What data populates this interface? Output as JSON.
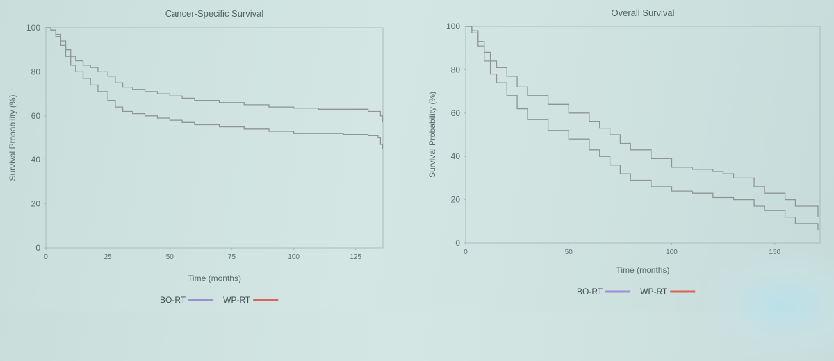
{
  "chart_data": [
    {
      "type": "line",
      "title": "Cancer-Specific Survival",
      "xlabel": "Time (months)",
      "ylabel": "Survival Probability (%)",
      "xlim": [
        0,
        136
      ],
      "ylim": [
        0,
        100
      ],
      "xticks": [
        0,
        25,
        50,
        75,
        100,
        125
      ],
      "yticks": [
        0,
        20,
        40,
        60,
        80,
        100
      ],
      "grid": false,
      "legend_position": "bottom",
      "legend": [
        {
          "label": "BO-RT",
          "color": "#9b8fd6"
        },
        {
          "label": "WP-RT",
          "color": "#d9645a"
        }
      ],
      "series": [
        {
          "name": "WP-RT",
          "color": "#8f9597",
          "x": [
            0,
            2,
            4,
            6,
            8,
            10,
            12,
            15,
            18,
            21,
            25,
            28,
            31,
            35,
            40,
            45,
            50,
            55,
            60,
            70,
            80,
            90,
            100,
            110,
            120,
            130,
            134,
            135,
            135.8
          ],
          "y": [
            100,
            99,
            97,
            94,
            90,
            87,
            85,
            83,
            82,
            80,
            78,
            75,
            73,
            72,
            71,
            70,
            69,
            68,
            67,
            66,
            65,
            64,
            63.5,
            63,
            63,
            62,
            62,
            60,
            57
          ]
        },
        {
          "name": "BO-RT",
          "color": "#8f9597",
          "x": [
            0,
            2,
            4,
            6,
            8,
            10,
            12,
            15,
            18,
            21,
            25,
            28,
            31,
            35,
            40,
            45,
            50,
            55,
            60,
            70,
            80,
            90,
            100,
            110,
            120,
            130,
            134,
            135,
            135.8
          ],
          "y": [
            100,
            99,
            96,
            92,
            87,
            83,
            80,
            77,
            74,
            71,
            67,
            64,
            62,
            61,
            60,
            59,
            58,
            57,
            56,
            55,
            54,
            53,
            52,
            52,
            51.5,
            51,
            50,
            47,
            45
          ]
        }
      ]
    },
    {
      "type": "line",
      "title": "Overall Survival",
      "xlabel": "Time (months)",
      "ylabel": "Survival Probability (%)",
      "xlim": [
        0,
        172
      ],
      "ylim": [
        0,
        100
      ],
      "xticks": [
        0,
        50,
        100,
        150
      ],
      "yticks": [
        0,
        20,
        40,
        60,
        80,
        100
      ],
      "grid": false,
      "legend_position": "bottom",
      "legend": [
        {
          "label": "BO-RT",
          "color": "#9b8fd6"
        },
        {
          "label": "WP-RT",
          "color": "#d9645a"
        }
      ],
      "series": [
        {
          "name": "WP-RT",
          "color": "#8f9597",
          "x": [
            0,
            3,
            6,
            9,
            12,
            15,
            20,
            25,
            30,
            40,
            50,
            60,
            65,
            70,
            75,
            80,
            90,
            100,
            110,
            120,
            125,
            130,
            140,
            145,
            155,
            160,
            170,
            171
          ],
          "y": [
            100,
            98,
            93,
            88,
            84,
            81,
            77,
            72,
            68,
            64,
            60,
            56,
            53,
            50,
            46,
            43,
            39,
            35,
            34,
            33,
            32,
            30,
            26,
            23,
            20,
            17,
            17,
            12
          ]
        },
        {
          "name": "BO-RT",
          "color": "#8f9597",
          "x": [
            0,
            3,
            6,
            9,
            12,
            15,
            20,
            25,
            30,
            40,
            50,
            60,
            65,
            70,
            75,
            80,
            90,
            100,
            110,
            120,
            125,
            130,
            140,
            145,
            155,
            160,
            170,
            171
          ],
          "y": [
            100,
            97,
            91,
            84,
            78,
            74,
            68,
            62,
            57,
            52,
            48,
            43,
            40,
            36,
            32,
            29,
            26,
            24,
            23,
            21,
            21,
            20,
            17,
            15,
            12,
            9,
            9,
            6
          ]
        }
      ]
    }
  ]
}
